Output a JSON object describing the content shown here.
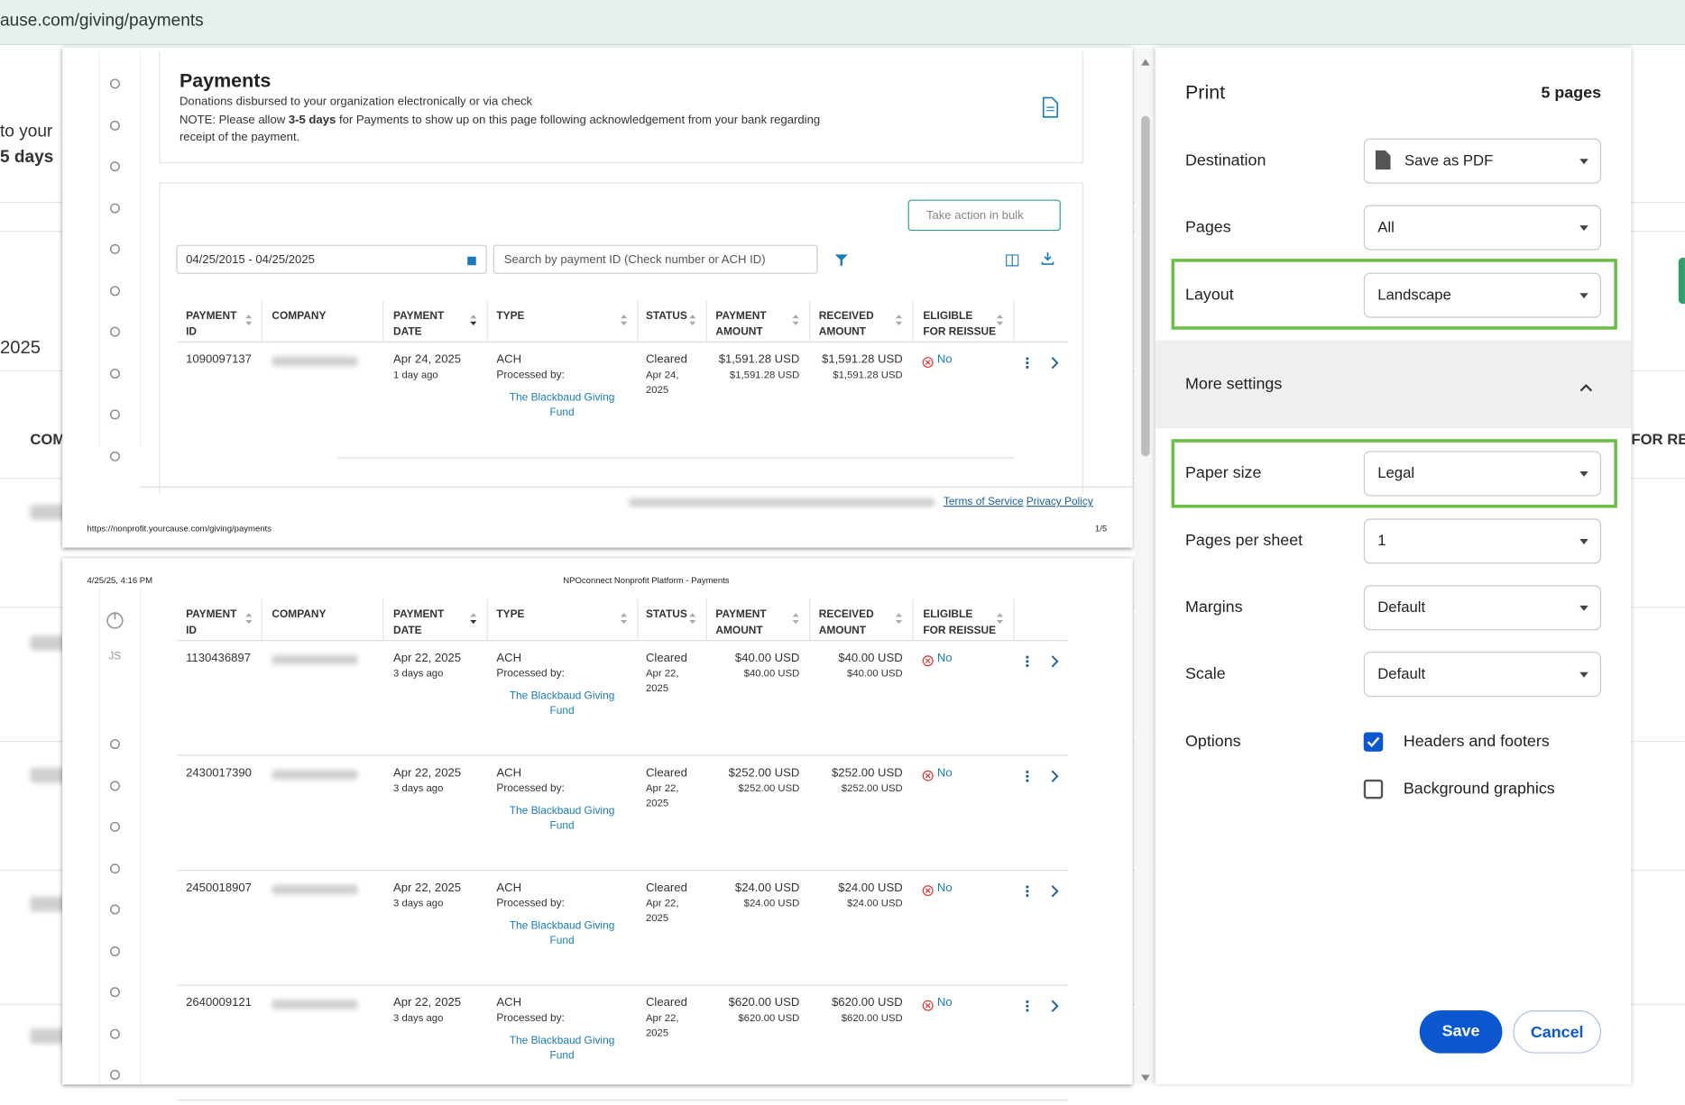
{
  "browser": {
    "url": "ause.com/giving/payments"
  },
  "background": {
    "texts": [
      "to your",
      "5 days",
      "2025",
      "COM",
      "FOR RE"
    ]
  },
  "preview": {
    "page1": {
      "title": "Payments",
      "subtitle": "Donations disbursed to your organization electronically or via check",
      "note_prefix": "NOTE: Please allow ",
      "note_bold": "3-5 days",
      "note_suffix": " for Payments to show up on this page following acknowledgement from your bank regarding receipt of the payment.",
      "bulk_button": "Take action in bulk",
      "date_range": "04/25/2015 - 04/25/2025",
      "search_placeholder": "Search by payment ID (Check number or ACH ID)",
      "footer_links": [
        "Terms of Service",
        "Privacy Policy"
      ],
      "url": "https://nonprofit.yourcause.com/giving/payments",
      "page_number": "1/5"
    },
    "columns": [
      "PAYMENT ID",
      "COMPANY",
      "PAYMENT DATE",
      "TYPE",
      "STATUS",
      "PAYMENT AMOUNT",
      "RECEIVED AMOUNT",
      "ELIGIBLE FOR REISSUE"
    ],
    "page1_rows": [
      {
        "id": "1090097137",
        "date": "Apr 24, 2025",
        "relative": "1 day ago",
        "type": "ACH",
        "processed_by": "Processed by:",
        "fund": "The Blackbaud Giving Fund",
        "status": "Cleared",
        "status_date": "Apr 24, 2025",
        "amount": "$1,591.28 USD",
        "amount_sub": "$1,591.28 USD",
        "received": "$1,591.28 USD",
        "received_sub": "$1,591.28 USD",
        "eligible": "No"
      }
    ],
    "page2": {
      "timestamp": "4/25/25, 4:16 PM",
      "header_title": "NPOconnect Nonprofit Platform - Payments",
      "user_initials": "JS"
    },
    "page2_rows": [
      {
        "id": "1130436897",
        "date": "Apr 22, 2025",
        "relative": "3 days ago",
        "type": "ACH",
        "processed_by": "Processed by:",
        "fund": "The Blackbaud Giving Fund",
        "status": "Cleared",
        "status_date": "Apr 22, 2025",
        "amount": "$40.00 USD",
        "amount_sub": "$40.00 USD",
        "received": "$40.00 USD",
        "received_sub": "$40.00 USD",
        "eligible": "No"
      },
      {
        "id": "2430017390",
        "date": "Apr 22, 2025",
        "relative": "3 days ago",
        "type": "ACH",
        "processed_by": "Processed by:",
        "fund": "The Blackbaud Giving Fund",
        "status": "Cleared",
        "status_date": "Apr 22, 2025",
        "amount": "$252.00 USD",
        "amount_sub": "$252.00 USD",
        "received": "$252.00 USD",
        "received_sub": "$252.00 USD",
        "eligible": "No"
      },
      {
        "id": "2450018907",
        "date": "Apr 22, 2025",
        "relative": "3 days ago",
        "type": "ACH",
        "processed_by": "Processed by:",
        "fund": "The Blackbaud Giving Fund",
        "status": "Cleared",
        "status_date": "Apr 22, 2025",
        "amount": "$24.00 USD",
        "amount_sub": "$24.00 USD",
        "received": "$24.00 USD",
        "received_sub": "$24.00 USD",
        "eligible": "No"
      },
      {
        "id": "2640009121",
        "date": "Apr 22, 2025",
        "relative": "3 days ago",
        "type": "ACH",
        "processed_by": "Processed by:",
        "fund": "The Blackbaud Giving Fund",
        "status": "Cleared",
        "status_date": "Apr 22, 2025",
        "amount": "$620.00 USD",
        "amount_sub": "$620.00 USD",
        "received": "$620.00 USD",
        "received_sub": "$620.00 USD",
        "eligible": "No"
      }
    ]
  },
  "print_dialog": {
    "title": "Print",
    "page_count": "5 pages",
    "settings_top": [
      {
        "label": "Destination",
        "value": "Save as PDF"
      },
      {
        "label": "Pages",
        "value": "All"
      },
      {
        "label": "Layout",
        "value": "Landscape"
      }
    ],
    "more_settings": "More settings",
    "settings_more": [
      {
        "label": "Paper size",
        "value": "Legal"
      },
      {
        "label": "Pages per sheet",
        "value": "1"
      },
      {
        "label": "Margins",
        "value": "Default"
      },
      {
        "label": "Scale",
        "value": "Default"
      }
    ],
    "options_label": "Options",
    "options": [
      {
        "label": "Headers and footers",
        "checked": true
      },
      {
        "label": "Background graphics",
        "checked": false
      }
    ],
    "save": "Save",
    "cancel": "Cancel"
  }
}
